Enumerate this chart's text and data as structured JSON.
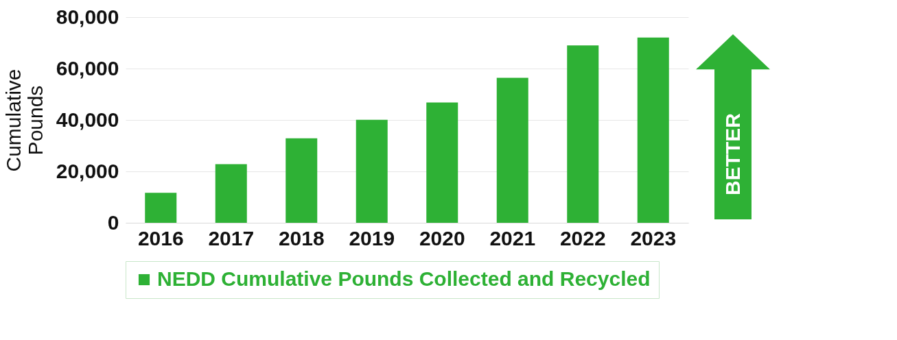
{
  "chart_data": {
    "type": "bar",
    "ylabel": "Cumulative Pounds",
    "categories": [
      "2016",
      "2017",
      "2018",
      "2019",
      "2020",
      "2021",
      "2022",
      "2023"
    ],
    "series": [
      {
        "name": "NEDD Cumulative Pounds Collected and Recycled",
        "color": "#2eb135",
        "values": [
          11700,
          22800,
          32900,
          40100,
          46800,
          56400,
          69000,
          72100
        ]
      }
    ],
    "ylim": [
      0,
      80000
    ],
    "yticks": [
      0,
      {
        "value": 20000,
        "label": "20,000"
      },
      {
        "value": 40000,
        "label": "40,000"
      },
      {
        "value": 60000,
        "label": "60,000"
      },
      {
        "value": 80000,
        "label": "80,000"
      }
    ],
    "grid": "y",
    "legend": "bottom",
    "annotations": [
      "BETTER"
    ]
  }
}
